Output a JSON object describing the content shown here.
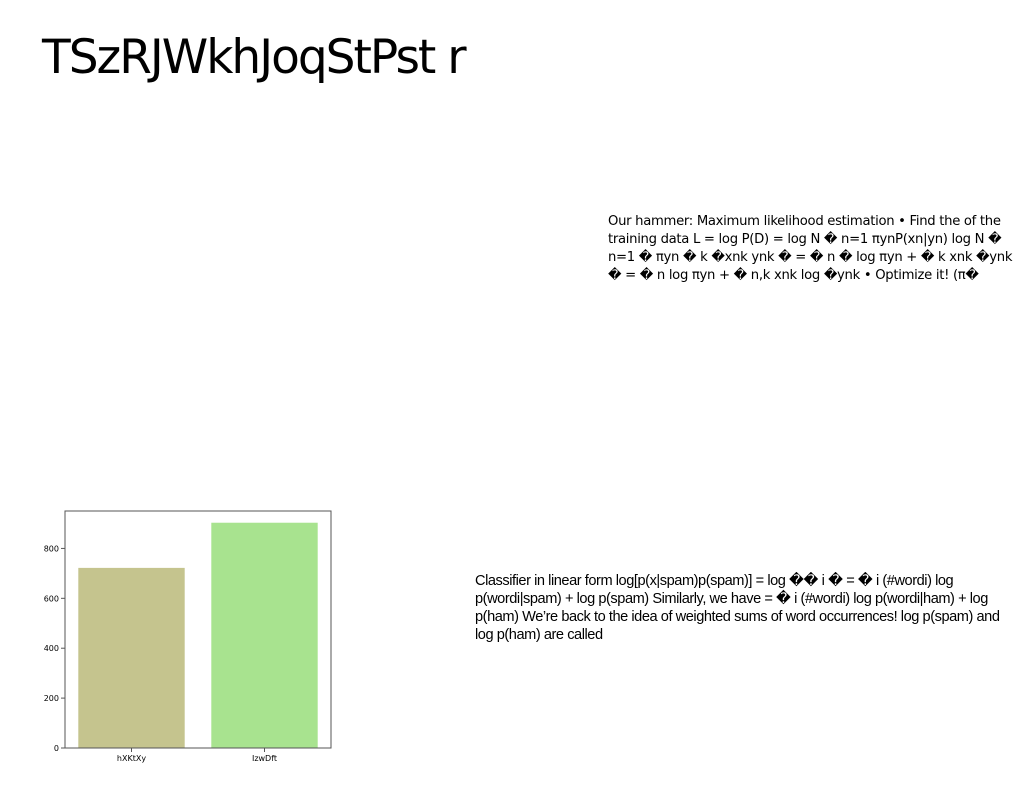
{
  "slide": {
    "title": "TSzRJWkhJoqStPst r",
    "mle_paragraph": "Our hammer: Maximum likelihood estimation • Find the of the training data L = log P(D) = log N � n=1 πynP(xn|yn) log N � n=1 � πyn � k �xnk ynk � = � n � log πyn + � k xnk �ynk � = � n log πyn + � n,k xnk log �ynk • Optimize it! (π�",
    "linear_paragraph": "Classifier in linear form log[p(x|spam)p(spam)] = log �� i � = � i (#wordi) log p(wordi|spam) + log p(spam) Similarly, we have = � i (#wordi) log p(wordi|ham) + log p(ham) We’re back to the idea of weighted sums of word occurrences! log p(spam) and log p(ham) are called"
  },
  "chart_data": {
    "type": "bar",
    "categories": [
      "hXKtXy",
      "IzwDft"
    ],
    "values": [
      722,
      903
    ],
    "colors": [
      "#c5c48e",
      "#a8e38f"
    ],
    "yticks": [
      0,
      200,
      400,
      600,
      800
    ],
    "ylim": [
      0,
      950
    ],
    "grid": false
  }
}
